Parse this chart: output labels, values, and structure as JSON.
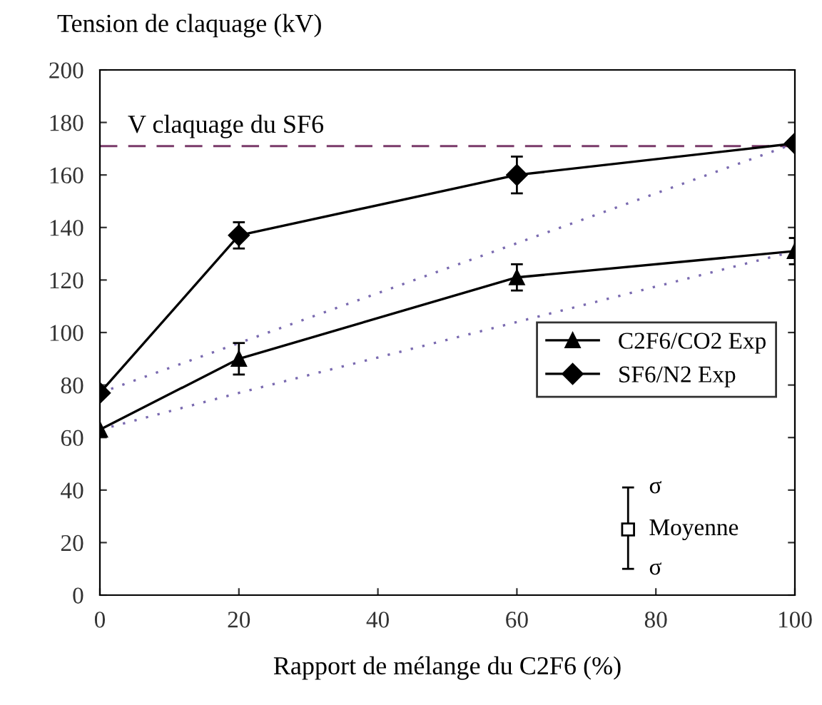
{
  "chart_data": {
    "type": "line",
    "ylabel": "Tension de claquage (kV)",
    "xlabel": "Rapport de mélange du C2F6 (%)",
    "x": [
      0,
      20,
      60,
      100
    ],
    "series": [
      {
        "name": "C2F6/CO2 Exp",
        "color": "#000000",
        "marker": "triangle",
        "values": [
          63,
          90,
          121,
          131
        ],
        "errors": [
          null,
          6,
          5,
          5
        ]
      },
      {
        "name": "SF6/N2 Exp",
        "color": "#000000",
        "marker": "diamond",
        "values": [
          77,
          137,
          160,
          172
        ],
        "errors": [
          null,
          5,
          7,
          null
        ]
      },
      {
        "type": "line",
        "values": [
          77,
          96,
          134,
          172
        ],
        "color": "#7a6ab0",
        "line_style": "dotted",
        "marker": "none"
      },
      {
        "type": "line",
        "values": [
          63,
          77,
          104,
          131
        ],
        "color": "#7a6ab0",
        "line_style": "dotted",
        "marker": "none"
      }
    ],
    "xlim": [
      0,
      100
    ],
    "xticks": [
      0,
      20,
      40,
      60,
      80,
      100
    ],
    "ylim": [
      0,
      200
    ],
    "yticks": [
      0,
      20,
      40,
      60,
      80,
      100,
      120,
      140,
      160,
      180,
      200
    ],
    "ref_lines": [
      {
        "axis": "y",
        "value": 171,
        "label": "V claquage du SF6",
        "color": "#7a3a6a",
        "line_style": "dashed"
      }
    ],
    "annotations": [
      "σ",
      "Moyenne",
      "σ"
    ],
    "legend": "right",
    "grid": false
  }
}
